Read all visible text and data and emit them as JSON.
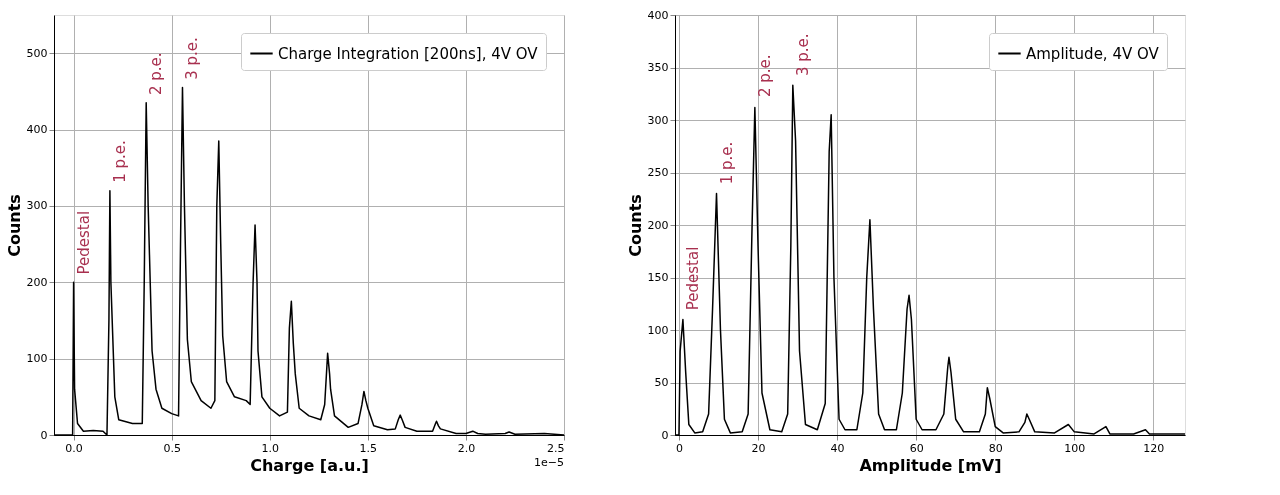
{
  "chart_data": [
    {
      "type": "line",
      "xlabel": "Charge [a.u.]",
      "ylabel": "Counts",
      "x": [
        -0.1,
        -0.005,
        0.0,
        0.005,
        0.02,
        0.05,
        0.1,
        0.15,
        0.17,
        0.18,
        0.185,
        0.19,
        0.21,
        0.23,
        0.3,
        0.35,
        0.36,
        0.37,
        0.38,
        0.4,
        0.42,
        0.45,
        0.5,
        0.535,
        0.545,
        0.555,
        0.565,
        0.58,
        0.6,
        0.65,
        0.7,
        0.72,
        0.73,
        0.74,
        0.75,
        0.76,
        0.78,
        0.82,
        0.88,
        0.9,
        0.915,
        0.925,
        0.935,
        0.94,
        0.96,
        1.0,
        1.05,
        1.09,
        1.1,
        1.11,
        1.12,
        1.13,
        1.15,
        1.2,
        1.26,
        1.28,
        1.295,
        1.305,
        1.31,
        1.33,
        1.4,
        1.45,
        1.47,
        1.48,
        1.49,
        1.5,
        1.53,
        1.6,
        1.64,
        1.655,
        1.665,
        1.675,
        1.69,
        1.75,
        1.83,
        1.845,
        1.85,
        1.86,
        1.87,
        1.95,
        2.0,
        2.035,
        2.06,
        2.1,
        2.2,
        2.22,
        2.25,
        2.4,
        2.5
      ],
      "series": [
        {
          "name": "Charge Integration [200ns], 4V OV",
          "color": "#000000",
          "values": [
            0,
            0,
            200,
            60,
            15,
            5,
            6,
            5,
            0,
            150,
            320,
            200,
            50,
            20,
            15,
            15,
            200,
            435,
            300,
            110,
            60,
            35,
            28,
            25,
            250,
            455,
            300,
            125,
            70,
            45,
            35,
            45,
            300,
            385,
            250,
            130,
            70,
            50,
            45,
            40,
            200,
            275,
            200,
            110,
            50,
            35,
            25,
            30,
            140,
            175,
            120,
            80,
            35,
            25,
            20,
            40,
            107,
            80,
            60,
            25,
            10,
            15,
            40,
            57,
            45,
            35,
            12,
            7,
            8,
            20,
            26,
            20,
            10,
            5,
            5,
            15,
            18,
            12,
            8,
            2,
            2,
            5,
            2,
            1,
            2,
            4,
            1,
            2,
            0
          ]
        }
      ],
      "xlim": [
        -0.1,
        2.5
      ],
      "ylim": [
        0,
        550
      ],
      "xticks": [
        {
          "value": 0,
          "label": "0.0"
        },
        {
          "value": 0.5,
          "label": "0.5"
        },
        {
          "value": 1,
          "label": "1.0"
        },
        {
          "value": 1.5,
          "label": "1.5"
        },
        {
          "value": 2,
          "label": "2.0"
        },
        {
          "value": 2.5,
          "label": "2.5"
        }
      ],
      "yticks": [
        0,
        100,
        200,
        300,
        400,
        500
      ],
      "annotations": [
        {
          "text": "Pedestal",
          "x": 0.0,
          "y": 205
        },
        {
          "text": "1 p.e.",
          "x": 0.185,
          "y": 325
        },
        {
          "text": "2 p.e.",
          "x": 0.37,
          "y": 440
        },
        {
          "text": "3 p.e.",
          "x": 0.555,
          "y": 460
        },
        "1e−5"
      ],
      "grid": true,
      "legend": "top right"
    },
    {
      "type": "line",
      "xlabel": "Amplitude [mV]",
      "ylabel": "Counts",
      "x": [
        -1,
        0,
        0.3,
        1,
        1.7,
        2.5,
        4,
        6,
        7.5,
        8.5,
        9.5,
        10.5,
        11.5,
        13,
        16,
        17.5,
        18.5,
        19.2,
        20,
        21,
        23,
        26,
        27.5,
        28.3,
        28.8,
        29.5,
        30.5,
        32,
        35,
        37,
        38,
        38.5,
        39.2,
        40.5,
        42,
        45,
        46.5,
        47.5,
        48.3,
        49.2,
        50.5,
        52,
        55,
        56.5,
        57.7,
        58.2,
        58.8,
        60,
        61.5,
        65,
        67,
        68,
        68.3,
        68.8,
        70,
        72,
        76,
        77.5,
        78,
        78.6,
        80,
        82,
        86,
        87.5,
        88,
        88.6,
        90,
        95,
        98.5,
        100,
        105,
        108,
        109,
        115,
        118,
        119,
        128
      ],
      "series": [
        {
          "name": "Amplitude, 4V OV",
          "color": "#000000",
          "values": [
            0,
            0,
            80,
            110,
            60,
            10,
            2,
            3,
            20,
            120,
            230,
            100,
            15,
            2,
            3,
            20,
            200,
            312,
            180,
            40,
            5,
            3,
            20,
            180,
            333,
            280,
            80,
            10,
            5,
            30,
            270,
            305,
            150,
            15,
            5,
            5,
            40,
            150,
            205,
            120,
            20,
            5,
            5,
            40,
            120,
            133,
            110,
            15,
            5,
            5,
            20,
            65,
            74,
            60,
            15,
            3,
            3,
            20,
            45,
            35,
            8,
            2,
            3,
            12,
            20,
            15,
            3,
            2,
            10,
            3,
            1,
            8,
            1,
            1,
            5,
            1,
            1
          ]
        }
      ],
      "xlim": [
        -1,
        128
      ],
      "ylim": [
        0,
        400
      ],
      "xticks": [
        0,
        20,
        40,
        60,
        80,
        100,
        120
      ],
      "yticks": [
        0,
        50,
        100,
        150,
        200,
        250,
        300,
        350,
        400
      ],
      "annotations": [
        {
          "text": "Pedestal",
          "x": 1,
          "y": 115
        },
        {
          "text": "1 p.e.",
          "x": 9.5,
          "y": 235
        },
        {
          "text": "2 p.e.",
          "x": 19.2,
          "y": 318
        },
        {
          "text": "3 p.e.",
          "x": 28.8,
          "y": 338
        }
      ],
      "grid": true,
      "legend": "top right"
    }
  ]
}
